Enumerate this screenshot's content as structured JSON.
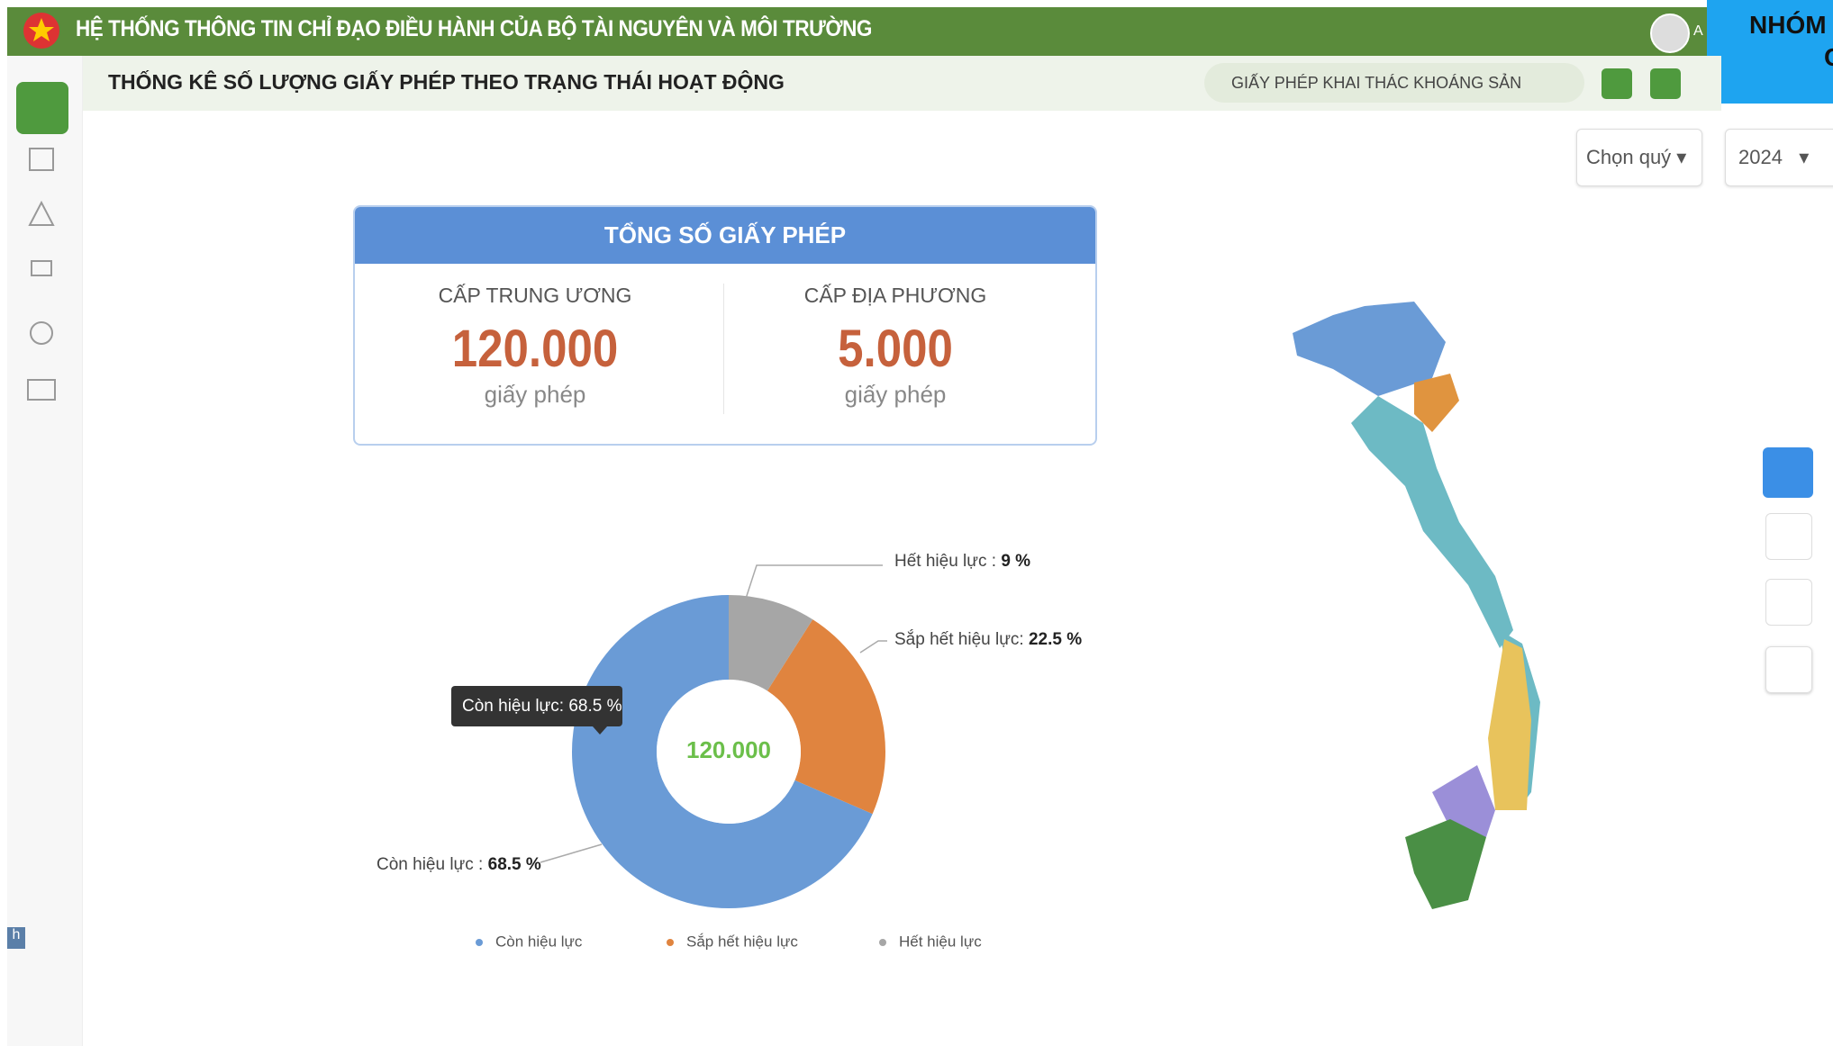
{
  "header": {
    "title": "HỆ THỐNG THÔNG TIN CHỈ ĐẠO ĐIỀU HÀNH CỦA BỘ TÀI NGUYÊN VÀ MÔI TRƯỜNG",
    "user": "A",
    "corner_lines": [
      "NHÓM",
      "C"
    ]
  },
  "toolbar": {
    "title": "THỐNG KÊ SỐ LƯỢNG GIẤY PHÉP THEO TRẠNG THÁI HOẠT ĐỘNG",
    "filter": "GIẤY  PHÉP KHAI THÁC KHOÁNG SẢN"
  },
  "selects": {
    "quarter": "Chọn quý",
    "year": "2024"
  },
  "sidebar_tab": "h",
  "summary": {
    "title": "TỔNG SỐ GIẤY PHÉP",
    "items": [
      {
        "label": "CẤP TRUNG ƯƠNG",
        "value": "120.000",
        "unit": "giấy phép"
      },
      {
        "label": "CẤP ĐỊA PHƯƠNG",
        "value": "5.000",
        "unit": "giấy phép"
      }
    ]
  },
  "chart_data": {
    "type": "donut",
    "categories": [
      "Còn hiệu lực",
      "Sắp hết hiệu lực",
      "Hết hiệu lực"
    ],
    "values": [
      68.5,
      22.5,
      9
    ],
    "value_labels": [
      "68.5 %",
      "22.5 %",
      "9 %"
    ],
    "slice_labels": [
      "Còn hiệu lực :",
      "Sắp hết hiệu lực:",
      "Hết hiệu lực :"
    ],
    "colors": [
      "#6a9bd6",
      "#e0843f",
      "#a6a6a6"
    ],
    "center_label": "120.000",
    "tooltip": "Còn hiệu lực: 68.5 %"
  }
}
